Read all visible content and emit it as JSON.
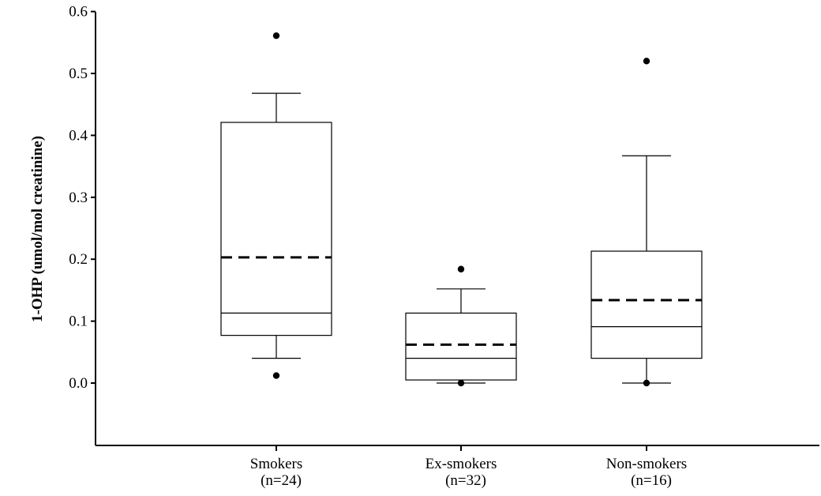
{
  "chart_data": {
    "type": "box",
    "title": "",
    "ylabel": "1-OHP (umol/mol creatinine)",
    "ylim": [
      -0.1,
      0.6
    ],
    "yticks": [
      0.0,
      0.1,
      0.2,
      0.3,
      0.4,
      0.5,
      0.6
    ],
    "ytick_labels": [
      "0.0",
      "0.1",
      "0.2",
      "0.3",
      "0.4",
      "0.5",
      "0.6"
    ],
    "grid": false,
    "categories": [
      {
        "name": "Smokers",
        "n_label": "(n=24)"
      },
      {
        "name": "Ex-smokers",
        "n_label": "(n=32)"
      },
      {
        "name": "Non-smokers",
        "n_label": "(n=16)"
      }
    ],
    "boxes": [
      {
        "whisker_low": 0.04,
        "q1": 0.077,
        "median": 0.113,
        "q3": 0.421,
        "whisker_high": 0.468,
        "mean": 0.203,
        "outliers": [
          0.012,
          0.561
        ]
      },
      {
        "whisker_low": 0.0,
        "q1": 0.005,
        "median": 0.04,
        "q3": 0.113,
        "whisker_high": 0.152,
        "mean": 0.062,
        "outliers": [
          0.0,
          0.184
        ]
      },
      {
        "whisker_low": 0.0,
        "q1": 0.04,
        "median": 0.091,
        "q3": 0.213,
        "whisker_high": 0.367,
        "mean": 0.134,
        "outliers": [
          0.0,
          0.52
        ]
      }
    ],
    "legend": "none"
  }
}
